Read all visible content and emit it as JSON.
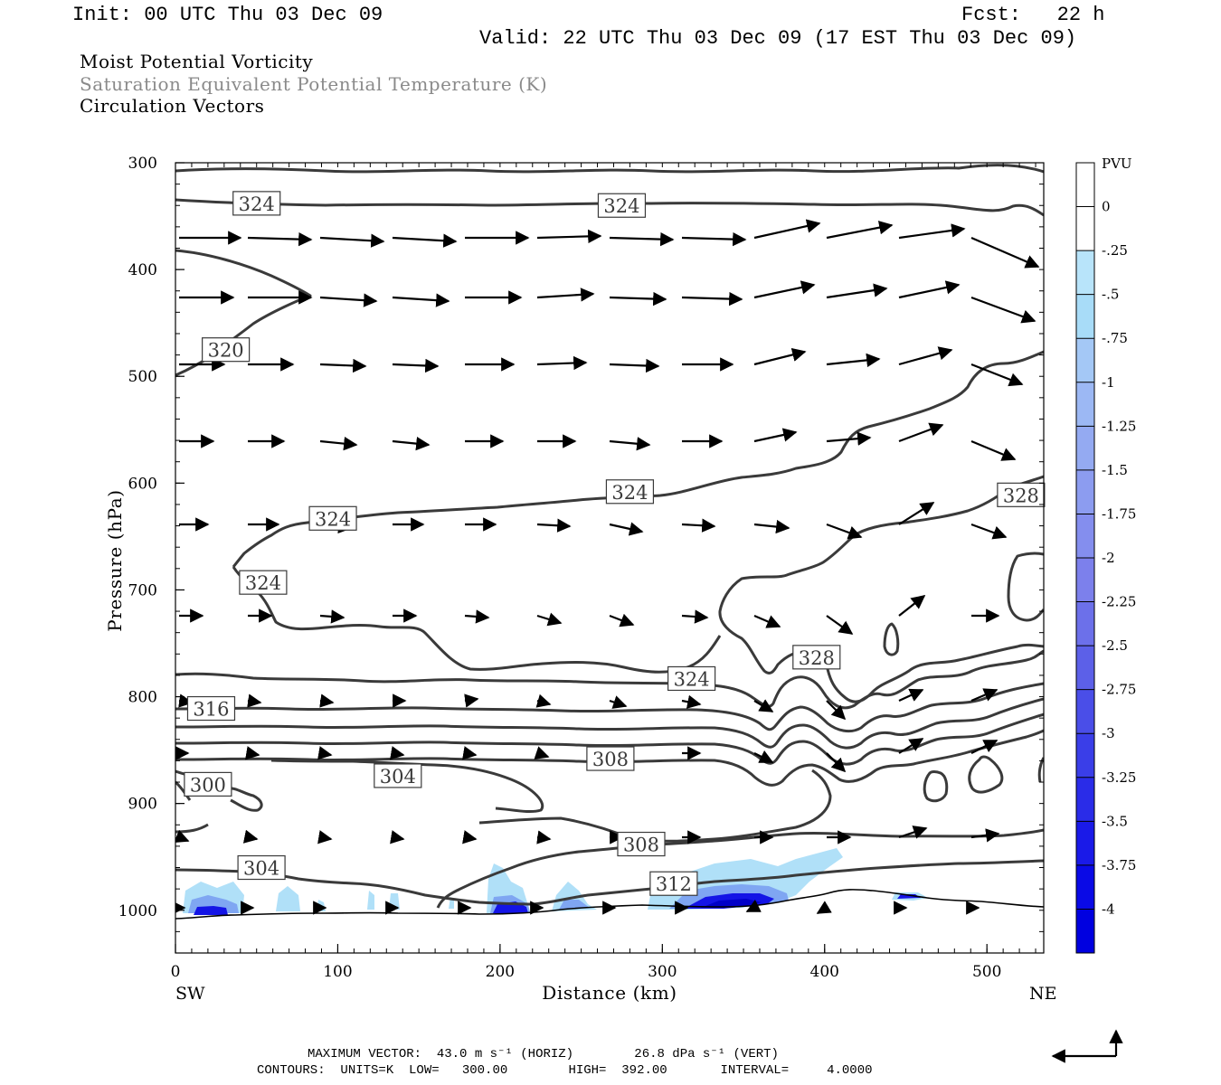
{
  "header": {
    "init": "Init: 00 UTC Thu 03 Dec 09",
    "fcst": "Fcst:   22 h",
    "valid": "Valid: 22 UTC Thu 03 Dec 09 (17 EST Thu 03 Dec 09)",
    "field1": "Moist Potential Vorticity",
    "field2": "Saturation Equivalent Potential Temperature (K)",
    "field3": "Circulation Vectors"
  },
  "footer": {
    "max_vector": "MAXIMUM VECTOR:  43.0 m s⁻¹ (HORIZ)        26.8 dPa s⁻¹ (VERT)",
    "contours": "CONTOURS:  UNITS=K  LOW=   300.00        HIGH=  392.00       INTERVAL=     4.0000"
  },
  "colors": {
    "contour": "#3a3a3a",
    "pv_light": "#b0e0f8",
    "pv_mid": "#7fa6f2",
    "pv_dark": "#1414e6",
    "pv_deep": "#0000c8"
  },
  "chart_data": {
    "type": "contour",
    "xlabel": "Distance (km)",
    "ylabel": "Pressure (hPa)",
    "xlim": [
      0,
      535
    ],
    "ylim": [
      1040,
      300
    ],
    "x_ticks": [
      "0",
      "100",
      "200",
      "300",
      "400",
      "500"
    ],
    "x_tick_values": [
      0,
      100,
      200,
      300,
      400,
      500
    ],
    "y_ticks": [
      "300",
      "400",
      "500",
      "600",
      "700",
      "800",
      "900",
      "1000"
    ],
    "y_tick_values": [
      300,
      400,
      500,
      600,
      700,
      800,
      900,
      1000
    ],
    "left_end_label": "SW",
    "right_end_label": "NE",
    "contour_labels": [
      {
        "text": "324",
        "x": 50,
        "p": 338
      },
      {
        "text": "324",
        "x": 275,
        "p": 340
      },
      {
        "text": "320",
        "x": 31,
        "p": 475
      },
      {
        "text": "324",
        "x": 97,
        "p": 633
      },
      {
        "text": "324",
        "x": 280,
        "p": 608
      },
      {
        "text": "328",
        "x": 521,
        "p": 611
      },
      {
        "text": "324",
        "x": 54,
        "p": 693
      },
      {
        "text": "328",
        "x": 395,
        "p": 763
      },
      {
        "text": "324",
        "x": 318,
        "p": 783
      },
      {
        "text": "316",
        "x": 22,
        "p": 811
      },
      {
        "text": "308",
        "x": 268,
        "p": 858
      },
      {
        "text": "304",
        "x": 137,
        "p": 874
      },
      {
        "text": "300",
        "x": 20,
        "p": 882
      },
      {
        "text": "308",
        "x": 287,
        "p": 938
      },
      {
        "text": "304",
        "x": 53,
        "p": 960
      },
      {
        "text": "312",
        "x": 307,
        "p": 975
      }
    ],
    "colorbar": {
      "title": "PVU",
      "labels": [
        "0",
        "-.25",
        "-.5",
        "-.75",
        "-1",
        "-1.25",
        "-1.5",
        "-1.75",
        "-2",
        "-2.25",
        "-2.5",
        "-2.75",
        "-3",
        "-3.25",
        "-3.5",
        "-3.75",
        "-4"
      ],
      "levels": [
        0,
        -0.25,
        -0.5,
        -0.75,
        -1,
        -1.25,
        -1.5,
        -1.75,
        -2,
        -2.25,
        -2.5,
        -2.75,
        -3,
        -3.25,
        -3.5,
        -3.75,
        -4
      ],
      "colors": [
        "#ffffff",
        "#ffffff",
        "#b8e4fa",
        "#a8dcf8",
        "#a4c8f6",
        "#9cb8f4",
        "#94aaf2",
        "#8c9cf0",
        "#848eee",
        "#7c80ec",
        "#6c70ea",
        "#5c60e8",
        "#4a4ee8",
        "#3a3ee8",
        "#2a2ce8",
        "#1a1ae8",
        "#0a0ae6",
        "#0000e0"
      ]
    }
  }
}
